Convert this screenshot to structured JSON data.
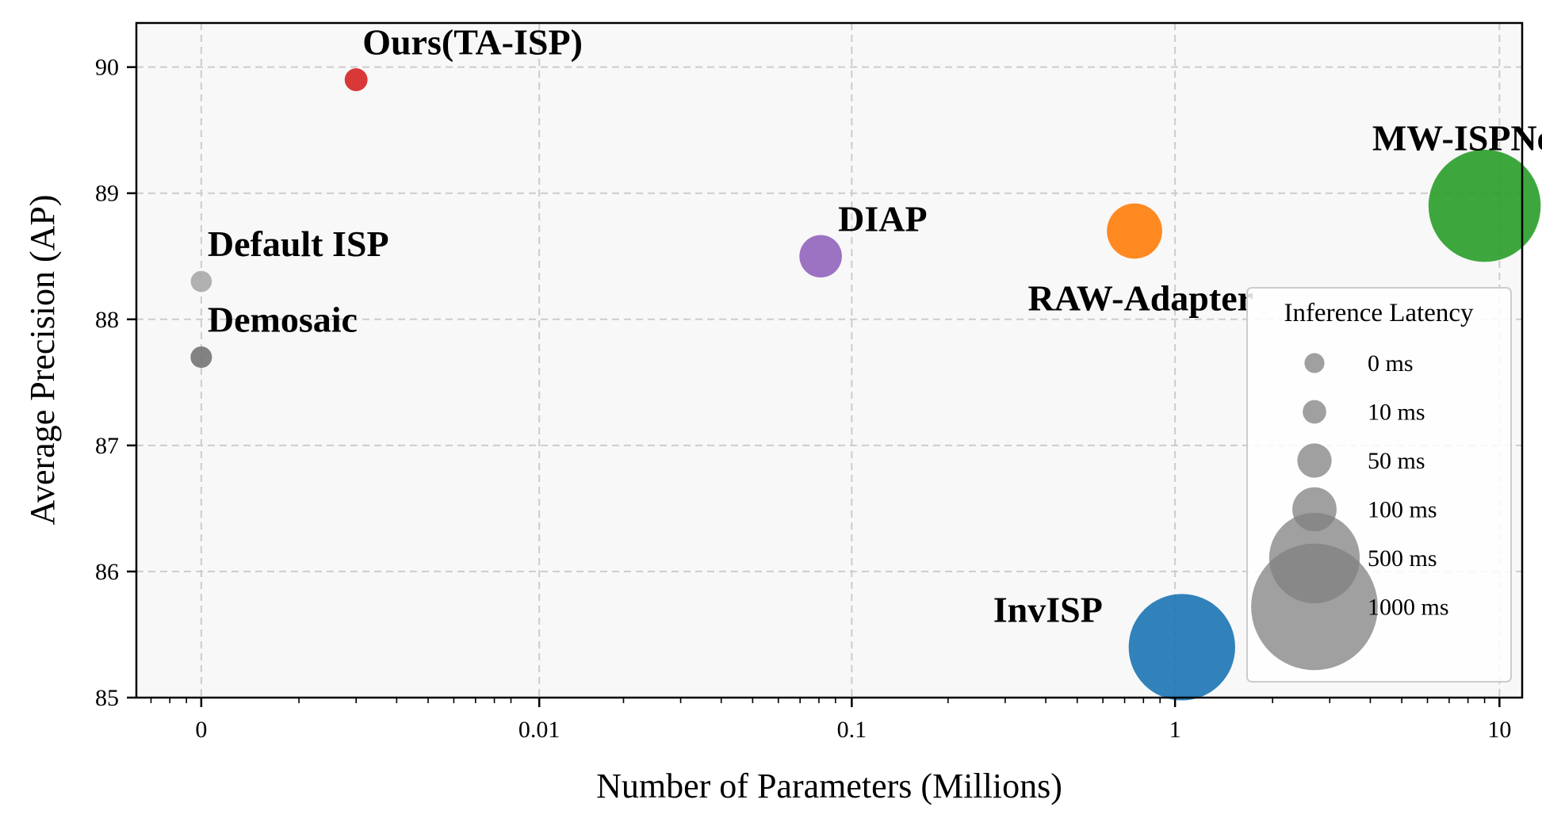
{
  "chart_data": {
    "type": "scatter",
    "xlabel": "Number of Parameters (Millions)",
    "ylabel": "Average Precision (AP)",
    "x_scale": "log",
    "x_display": "log(x + 0.001)",
    "x_ticks": [
      {
        "value": 0,
        "label": "0"
      },
      {
        "value": 0.01,
        "label": "0.01"
      },
      {
        "value": 0.1,
        "label": "0.1"
      },
      {
        "value": 1,
        "label": "1"
      },
      {
        "value": 10,
        "label": "10"
      }
    ],
    "ylim": [
      85,
      90.35
    ],
    "y_ticks": [
      85,
      86,
      87,
      88,
      89,
      90
    ],
    "grid": true,
    "points": [
      {
        "name": "Ours(TA-ISP)",
        "x": 0.002,
        "y": 89.9,
        "latency_ms": 8,
        "color": "#d62728"
      },
      {
        "name": "Default ISP",
        "x": 0,
        "y": 88.3,
        "latency_ms": 3,
        "color": "#aaaaaa"
      },
      {
        "name": "Demosaic",
        "x": 0,
        "y": 87.7,
        "latency_ms": 4,
        "color": "#777777"
      },
      {
        "name": "DIAP",
        "x": 0.08,
        "y": 88.5,
        "latency_ms": 90,
        "color": "#9467bd"
      },
      {
        "name": "RAW-Adapter",
        "x": 0.75,
        "y": 88.7,
        "latency_ms": 170,
        "color": "#ff7f0e"
      },
      {
        "name": "MW-ISPNet",
        "x": 9,
        "y": 88.9,
        "latency_ms": 780,
        "color": "#2ca02c"
      },
      {
        "name": "InvISP",
        "x": 1.05,
        "y": 85.4,
        "latency_ms": 700,
        "color": "#1f77b4"
      }
    ],
    "legend": {
      "title": "Inference Latency",
      "placement": "lower-right",
      "entries": [
        {
          "label": "0 ms",
          "latency_ms": 0
        },
        {
          "label": "10 ms",
          "latency_ms": 10
        },
        {
          "label": "50 ms",
          "latency_ms": 50
        },
        {
          "label": "100 ms",
          "latency_ms": 100
        },
        {
          "label": "500 ms",
          "latency_ms": 500
        },
        {
          "label": "1000 ms",
          "latency_ms": 1000
        }
      ]
    }
  }
}
